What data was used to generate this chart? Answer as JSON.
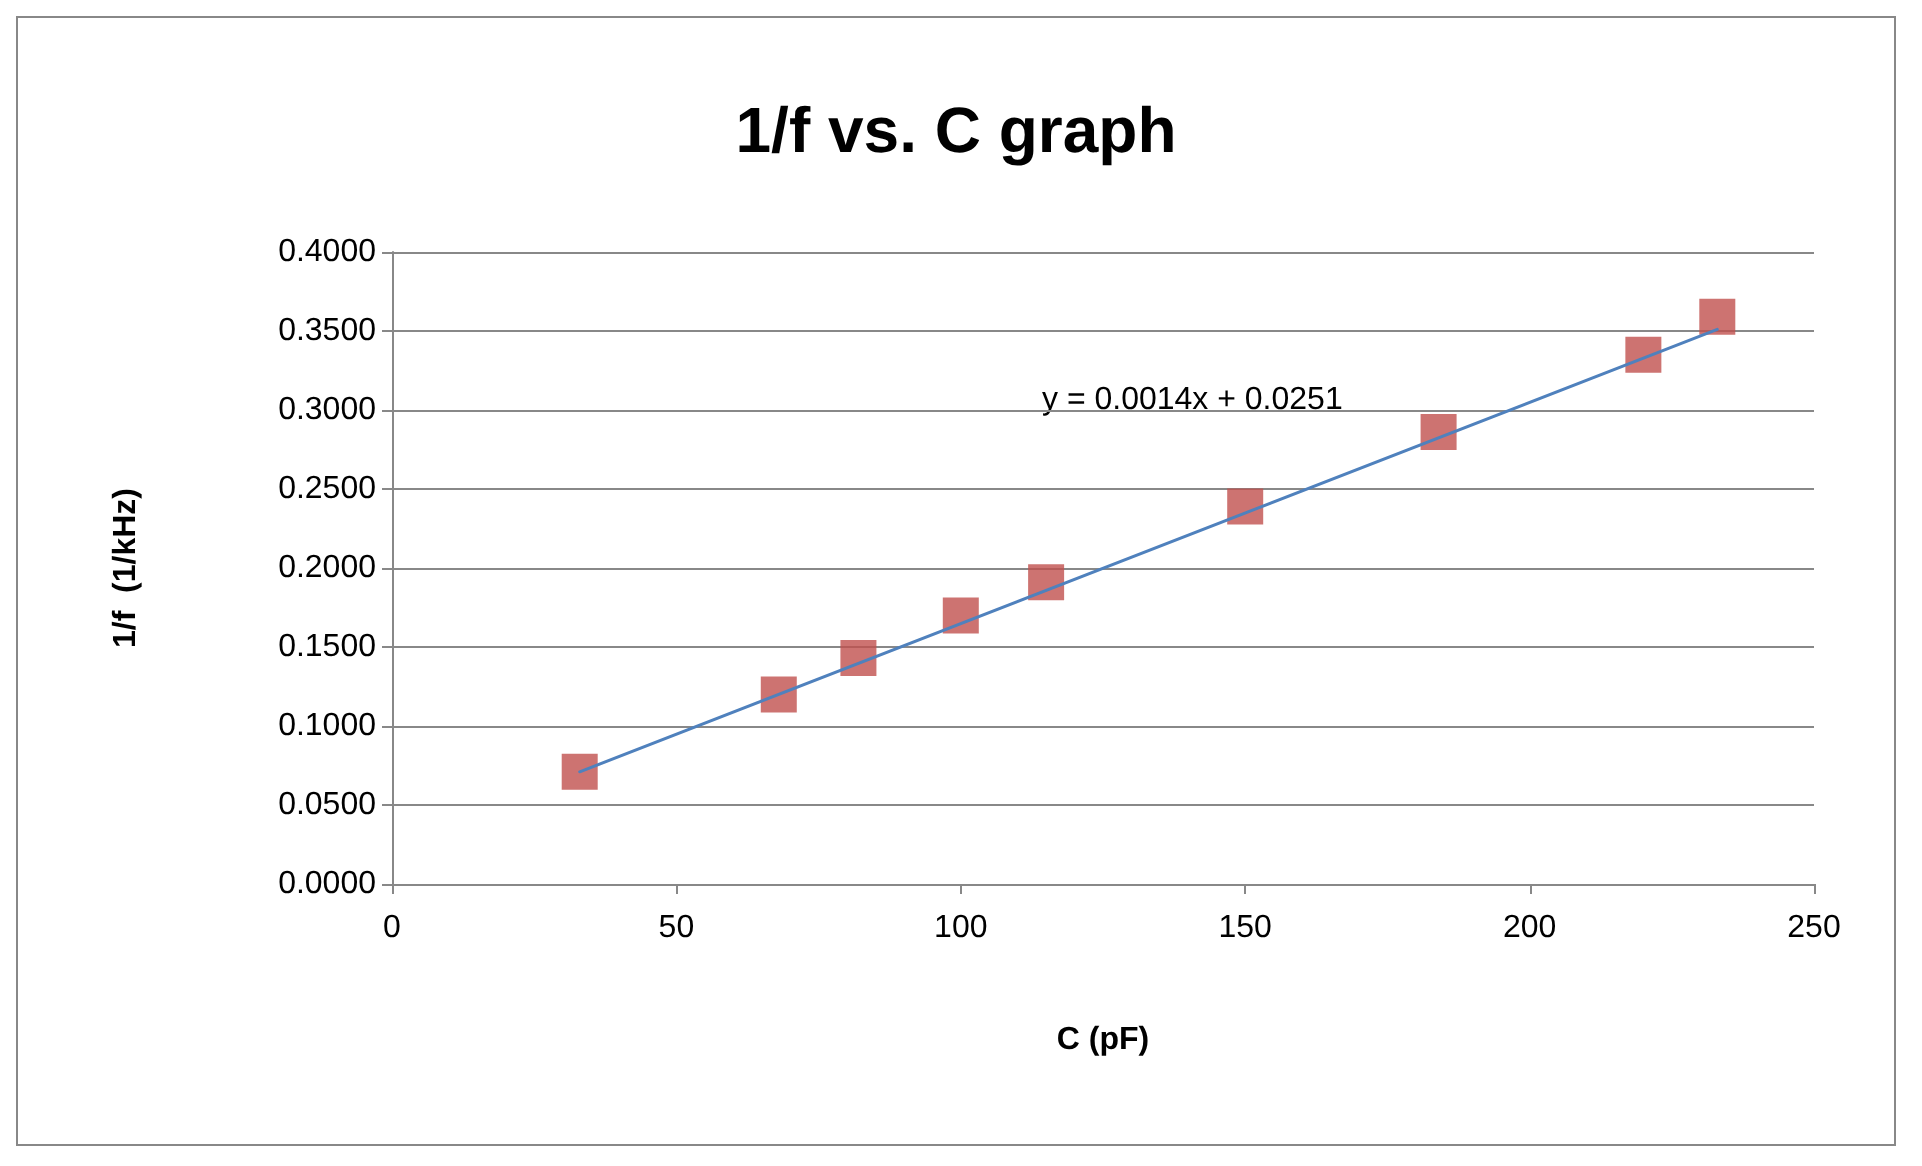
{
  "chart_data": {
    "type": "scatter",
    "title": "1/f vs. C graph",
    "xlabel": "C (pF)",
    "ylabel": "1/f  (1/kHz)",
    "series": [
      {
        "color": "#c0504d",
        "marker": "square",
        "x": [
          33,
          68,
          82,
          100,
          115,
          150,
          184,
          220,
          233
        ],
        "values": [
          0.071,
          0.12,
          0.143,
          0.17,
          0.191,
          0.239,
          0.286,
          0.335,
          0.359
        ]
      },
      {
        "type": "line",
        "color": "#4f81bd",
        "marker": "none",
        "line_style": "solid",
        "x": [
          33,
          233
        ],
        "values": [
          0.071,
          0.351
        ]
      }
    ],
    "xlim": [
      0,
      250
    ],
    "xticks": [
      0,
      50,
      100,
      150,
      200,
      250
    ],
    "ylim": [
      0,
      0.4
    ],
    "yticks": [
      {
        "value": 0,
        "label": "0.0000"
      },
      {
        "value": 0.05,
        "label": "0.0500"
      },
      {
        "value": 0.1,
        "label": "0.1000"
      },
      {
        "value": 0.15,
        "label": "0.1500"
      },
      {
        "value": 0.2,
        "label": "0.2000"
      },
      {
        "value": 0.25,
        "label": "0.2500"
      },
      {
        "value": 0.3,
        "label": "0.3000"
      },
      {
        "value": 0.35,
        "label": "0.3500"
      },
      {
        "value": 0.4,
        "label": "0.4000"
      }
    ],
    "grid": "y",
    "annotations": [
      "y = 0.0014x + 0.0251"
    ]
  }
}
